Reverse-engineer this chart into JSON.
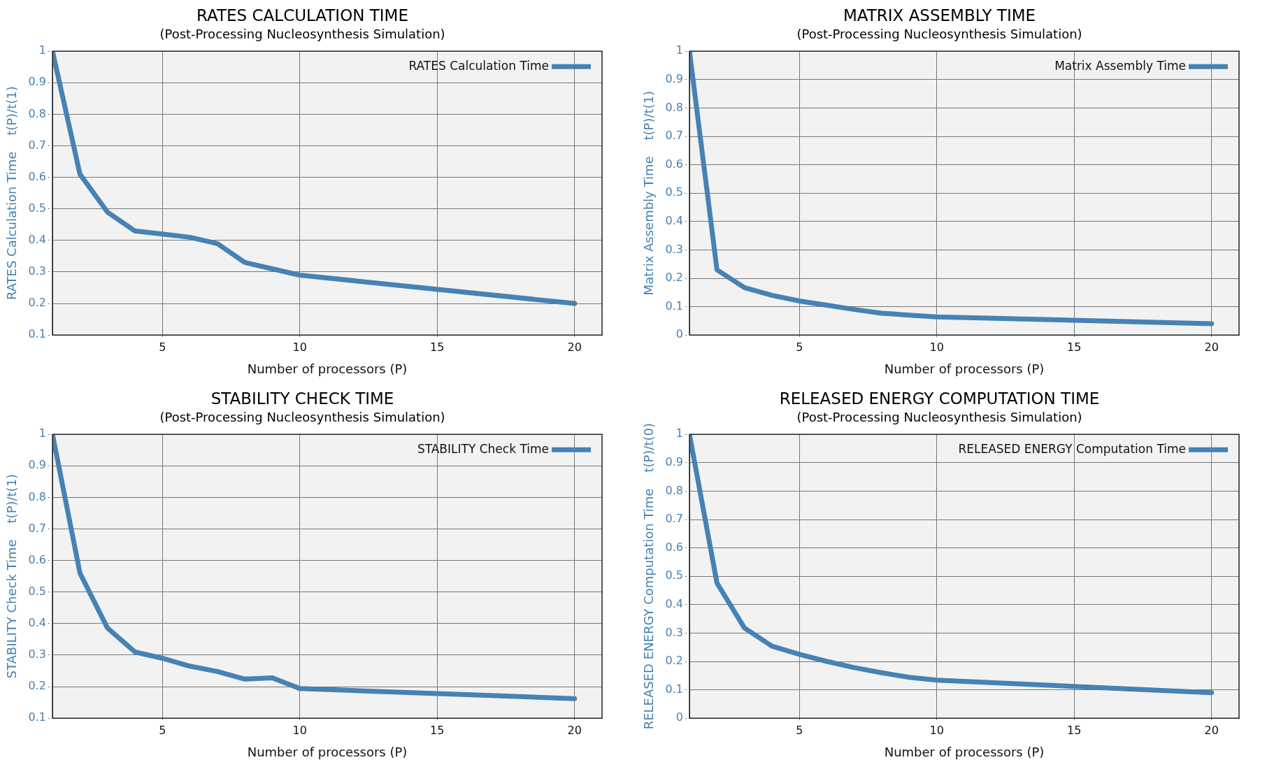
{
  "chart_data": [
    {
      "type": "line",
      "title": "RATES CALCULATION TIME",
      "subtitle": "(Post-Processing Nucleosynthesis Simulation)",
      "xlabel": "Number of processors (P)",
      "ylabel": "RATES Calculation Time    t(P)/t(1)",
      "x": [
        1,
        2,
        3,
        4,
        5,
        6,
        7,
        8,
        9,
        10,
        20
      ],
      "series": [
        {
          "name": "RATES Calculation Time",
          "color": "#4682b4",
          "values": [
            1,
            0.61,
            0.49,
            0.43,
            0.42,
            0.41,
            0.39,
            0.33,
            0.31,
            0.29,
            0.2
          ]
        }
      ],
      "xlim": [
        1,
        21
      ],
      "xticks": [
        5,
        10,
        15,
        20
      ],
      "ylim": [
        0.1,
        1
      ],
      "yticks": [
        0.1,
        0.2,
        0.3,
        0.4,
        0.5,
        0.6,
        0.7,
        0.8,
        0.9,
        1
      ],
      "grid": true,
      "legend": "top right"
    },
    {
      "type": "line",
      "title": "MATRIX ASSEMBLY TIME",
      "subtitle": "(Post-Processing Nucleosynthesis Simulation)",
      "xlabel": "Number of processors (P)",
      "ylabel": "Matrix Assembly Time    t(P)/t(1)",
      "x": [
        1,
        2,
        3,
        4,
        5,
        6,
        7,
        8,
        9,
        10,
        20
      ],
      "series": [
        {
          "name": "Matrix Assembly Time",
          "color": "#4682b4",
          "values": [
            1,
            0.23,
            0.167,
            0.14,
            0.12,
            0.105,
            0.09,
            0.077,
            0.07,
            0.064,
            0.04
          ]
        }
      ],
      "xlim": [
        1,
        21
      ],
      "xticks": [
        5,
        10,
        15,
        20
      ],
      "ylim": [
        0,
        1
      ],
      "yticks": [
        0,
        0.1,
        0.2,
        0.3,
        0.4,
        0.5,
        0.6,
        0.7,
        0.8,
        0.9,
        1
      ],
      "grid": true,
      "legend": "top right"
    },
    {
      "type": "line",
      "title": "STABILITY CHECK TIME",
      "subtitle": "(Post-Processing Nucleosynthesis Simulation)",
      "xlabel": "Number of processors (P)",
      "ylabel": "STABILITY Check Time    t(P)/t(1)",
      "x": [
        1,
        2,
        3,
        4,
        5,
        6,
        7,
        8,
        9,
        10,
        20
      ],
      "series": [
        {
          "name": "STABILITY Check Time",
          "color": "#4682b4",
          "values": [
            1,
            0.56,
            0.386,
            0.31,
            0.29,
            0.265,
            0.248,
            0.224,
            0.228,
            0.194,
            0.162
          ]
        }
      ],
      "xlim": [
        1,
        21
      ],
      "xticks": [
        5,
        10,
        15,
        20
      ],
      "ylim": [
        0.1,
        1
      ],
      "yticks": [
        0.1,
        0.2,
        0.3,
        0.4,
        0.5,
        0.6,
        0.7,
        0.8,
        0.9,
        1
      ],
      "grid": true,
      "legend": "top right"
    },
    {
      "type": "line",
      "title": "RELEASED ENERGY COMPUTATION TIME",
      "subtitle": "(Post-Processing Nucleosynthesis Simulation)",
      "xlabel": "Number of processors (P)",
      "ylabel": "RELEASED ENERGY Computation Time    t(P)/t(0)",
      "x": [
        1,
        2,
        3,
        4,
        5,
        6,
        7,
        8,
        9,
        10,
        20
      ],
      "series": [
        {
          "name": "RELEASED ENERGY Computation Time",
          "color": "#4682b4",
          "values": [
            1,
            0.476,
            0.318,
            0.254,
            0.225,
            0.2,
            0.178,
            0.16,
            0.144,
            0.134,
            0.09
          ]
        }
      ],
      "xlim": [
        1,
        21
      ],
      "xticks": [
        5,
        10,
        15,
        20
      ],
      "ylim": [
        0,
        1
      ],
      "yticks": [
        0,
        0.1,
        0.2,
        0.3,
        0.4,
        0.5,
        0.6,
        0.7,
        0.8,
        0.9,
        1
      ],
      "grid": true,
      "legend": "top right"
    }
  ]
}
